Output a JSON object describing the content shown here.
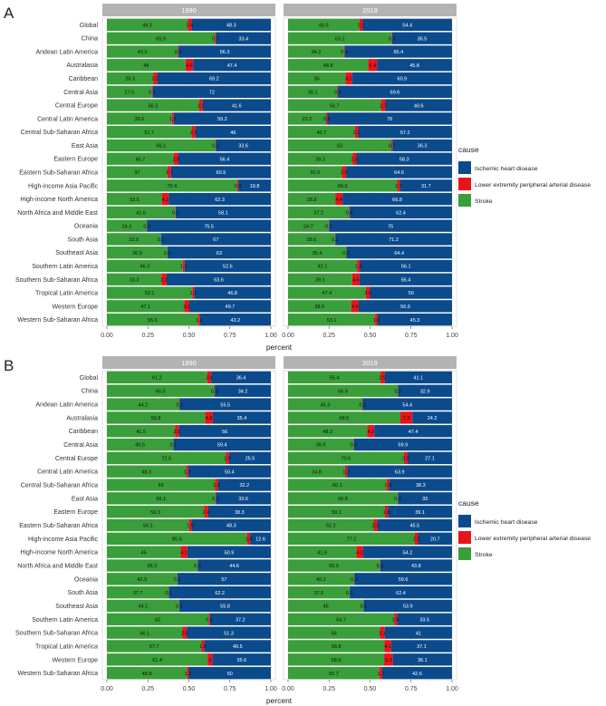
{
  "legend": {
    "title": "cause",
    "items": [
      {
        "label": "Ischemic heart disease",
        "color": "#0b4a8b"
      },
      {
        "label": "Lower extremity peripheral arterial disease",
        "color": "#e8141c"
      },
      {
        "label": "Stroke",
        "color": "#3a9e3a"
      }
    ]
  },
  "colors": {
    "stroke": "#3a9e3a",
    "pad": "#e8141c",
    "ihd": "#0b4a8b",
    "strip": "#b3b3b3",
    "panel": "#ebebeb"
  },
  "chart_data": [
    {
      "type": "bar",
      "stacked": "horizontal-100%",
      "panel_label": "A",
      "facets": [
        "1990",
        "2019"
      ],
      "xlabel": "percent",
      "xticks": [
        "0.00",
        "0.25",
        "0.50",
        "0.75",
        "1.00"
      ],
      "xlim": [
        0,
        1
      ],
      "categories": [
        "Global",
        "China",
        "Andean Latin America",
        "Australasia",
        "Caribbean",
        "Central Asia",
        "Central Europe",
        "Central Latin America",
        "Central Sub-Saharan Africa",
        "East Asia",
        "Eastern Europe",
        "Eastern Sub-Saharan Africa",
        "High-income Asia Pacific",
        "High-income North America",
        "North Africa and Middle East",
        "Oceania",
        "South Asia",
        "Southeast Asia",
        "Southern Latin America",
        "Southern Sub-Saharan Africa",
        "Tropical Latin America",
        "Western Europe",
        "Western Sub-Saharan Africa"
      ],
      "data": {
        "1990": {
          "stroke": [
            49.3,
            65.9,
            43.2,
            48,
            28.3,
            27.5,
            56.3,
            39.6,
            51.7,
            66.1,
            40.7,
            37,
            79.4,
            33.5,
            41.6,
            24.3,
            32.9,
            36.9,
            46.3,
            33.3,
            52.1,
            47.1,
            55.6
          ],
          "pad": [
            2.4,
            0.7,
            0.5,
            4.6,
            2.5,
            0.5,
            2.1,
            1.2,
            2.3,
            0.3,
            2.9,
            2.1,
            0.8,
            4.2,
            0.3,
            0.2,
            0.1,
            0.1,
            1.1,
            3.1,
            1.1,
            3.2,
            1.2
          ],
          "ihd": [
            48.3,
            33.4,
            56.3,
            47.4,
            69.2,
            72.0,
            41.6,
            59.2,
            46.0,
            33.6,
            56.4,
            60.9,
            19.8,
            62.3,
            58.1,
            75.5,
            67.0,
            63.0,
            52.6,
            63.6,
            46.8,
            49.7,
            43.2
          ]
        },
        "2019": {
          "stroke": [
            43.5,
            63.2,
            34.2,
            48.8,
            35,
            30.1,
            56.7,
            23.2,
            40.7,
            63,
            39.3,
            32.9,
            66.6,
            28.8,
            37.2,
            24.7,
            28.6,
            35.4,
            42.1,
            39.1,
            47.4,
            38.5,
            53.1
          ],
          "pad": [
            2.1,
            0.3,
            0.4,
            5.4,
            4.1,
            0.3,
            2.7,
            0.8,
            2.1,
            0.7,
            2.4,
            2.5,
            1.7,
            4.4,
            0.4,
            0.3,
            0.2,
            0.2,
            1.8,
            4.5,
            2.6,
            4.6,
            1.6
          ],
          "ihd": [
            54.4,
            36.5,
            65.4,
            45.8,
            60.9,
            69.6,
            40.6,
            76.0,
            57.2,
            36.3,
            58.3,
            64.6,
            31.7,
            66.8,
            62.4,
            75.0,
            71.2,
            64.4,
            56.1,
            56.4,
            50.0,
            56.9,
            45.3
          ]
        }
      }
    },
    {
      "type": "bar",
      "stacked": "horizontal-100%",
      "panel_label": "B",
      "facets": [
        "1990",
        "2019"
      ],
      "xlabel": "percent",
      "xticks": [
        "0.00",
        "0.25",
        "0.50",
        "0.75",
        "1.00"
      ],
      "xlim": [
        0,
        1
      ],
      "categories": [
        "Global",
        "China",
        "Andean Latin America",
        "Australasia",
        "Caribbean",
        "Central Asia",
        "Central Europe",
        "Central Latin America",
        "Central Sub-Saharan Africa",
        "East Asia",
        "Eastern Europe",
        "Eastern Sub-Saharan Africa",
        "High-income Asia Pacific",
        "High-income North America",
        "North Africa and Middle East",
        "Oceania",
        "South Asia",
        "Southeast Asia",
        "Southern Latin America",
        "Southern Sub-Saharan Africa",
        "Tropical Latin America",
        "Western Europe",
        "Western Sub-Saharan Africa"
      ],
      "data": {
        "1990": {
          "stroke": [
            61.2,
            65.5,
            44.2,
            59.8,
            41.5,
            40.5,
            72.6,
            48.3,
            66,
            66.1,
            59.3,
            50.1,
            85.6,
            45,
            55.2,
            42.9,
            37.7,
            44.1,
            62,
            46.1,
            57.7,
            61.4,
            48.8
          ],
          "pad": [
            2.4,
            0.3,
            0.3,
            4.8,
            2.5,
            0.1,
            1.9,
            1.3,
            1.8,
            0.3,
            2.4,
            1.6,
            1.8,
            4.1,
            0.2,
            0.1,
            0.1,
            0.1,
            0.8,
            2.6,
            1.8,
            3.0,
            1.2
          ],
          "ihd": [
            36.4,
            34.2,
            55.5,
            35.4,
            56.0,
            59.4,
            25.5,
            50.4,
            32.2,
            33.6,
            38.3,
            48.3,
            12.6,
            50.9,
            44.6,
            57.0,
            62.2,
            55.8,
            37.2,
            51.3,
            40.5,
            35.6,
            50.0
          ]
        },
        "2019": {
          "stroke": [
            56.4,
            66.9,
            45.3,
            68.5,
            48.3,
            39.9,
            70.6,
            34.8,
            60.1,
            66.8,
            59.1,
            52.2,
            77.2,
            41.6,
            55.9,
            40.2,
            37.5,
            46,
            64.7,
            56,
            58.8,
            58.6,
            55.7
          ],
          "pad": [
            2.5,
            0.2,
            0.3,
            7.3,
            4.3,
            0.2,
            2.3,
            1.3,
            1.6,
            0.2,
            1.8,
            2.3,
            2.1,
            4.2,
            0.3,
            0.2,
            0.1,
            0.1,
            1.8,
            3.1,
            4.1,
            5.3,
            1.7
          ],
          "ihd": [
            41.1,
            32.9,
            54.4,
            24.2,
            47.4,
            59.9,
            27.1,
            63.9,
            38.3,
            33.0,
            39.1,
            45.5,
            20.7,
            54.2,
            43.8,
            59.6,
            62.4,
            53.9,
            33.5,
            41.0,
            37.1,
            36.1,
            42.6
          ]
        }
      }
    }
  ]
}
